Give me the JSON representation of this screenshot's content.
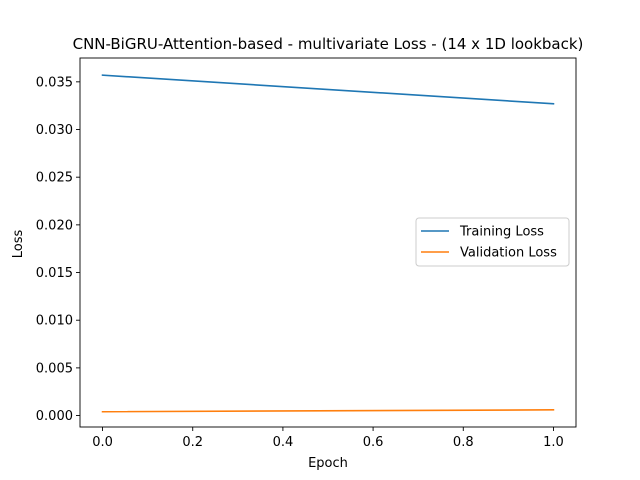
{
  "chart_data": {
    "type": "line",
    "title": "CNN-BiGRU-Attention-based - multivariate Loss - (14 x 1D lookback)",
    "xlabel": "Epoch",
    "ylabel": "Loss",
    "xlim": [
      -0.05,
      1.05
    ],
    "ylim": [
      -0.0012,
      0.0375
    ],
    "xticks": [
      0.0,
      0.2,
      0.4,
      0.6,
      0.8,
      1.0
    ],
    "xtick_labels": [
      "0.0",
      "0.2",
      "0.4",
      "0.6",
      "0.8",
      "1.0"
    ],
    "yticks": [
      0.0,
      0.005,
      0.01,
      0.015,
      0.02,
      0.025,
      0.03,
      0.035
    ],
    "ytick_labels": [
      "0.000",
      "0.005",
      "0.010",
      "0.015",
      "0.020",
      "0.025",
      "0.030",
      "0.035"
    ],
    "grid": false,
    "legend_position": "center-right",
    "x": [
      0,
      1
    ],
    "series": [
      {
        "name": "Training Loss",
        "color": "#1f77b4",
        "values": [
          0.0357,
          0.0327
        ]
      },
      {
        "name": "Validation Loss",
        "color": "#ff7f0e",
        "values": [
          0.0004,
          0.0006
        ]
      }
    ]
  }
}
